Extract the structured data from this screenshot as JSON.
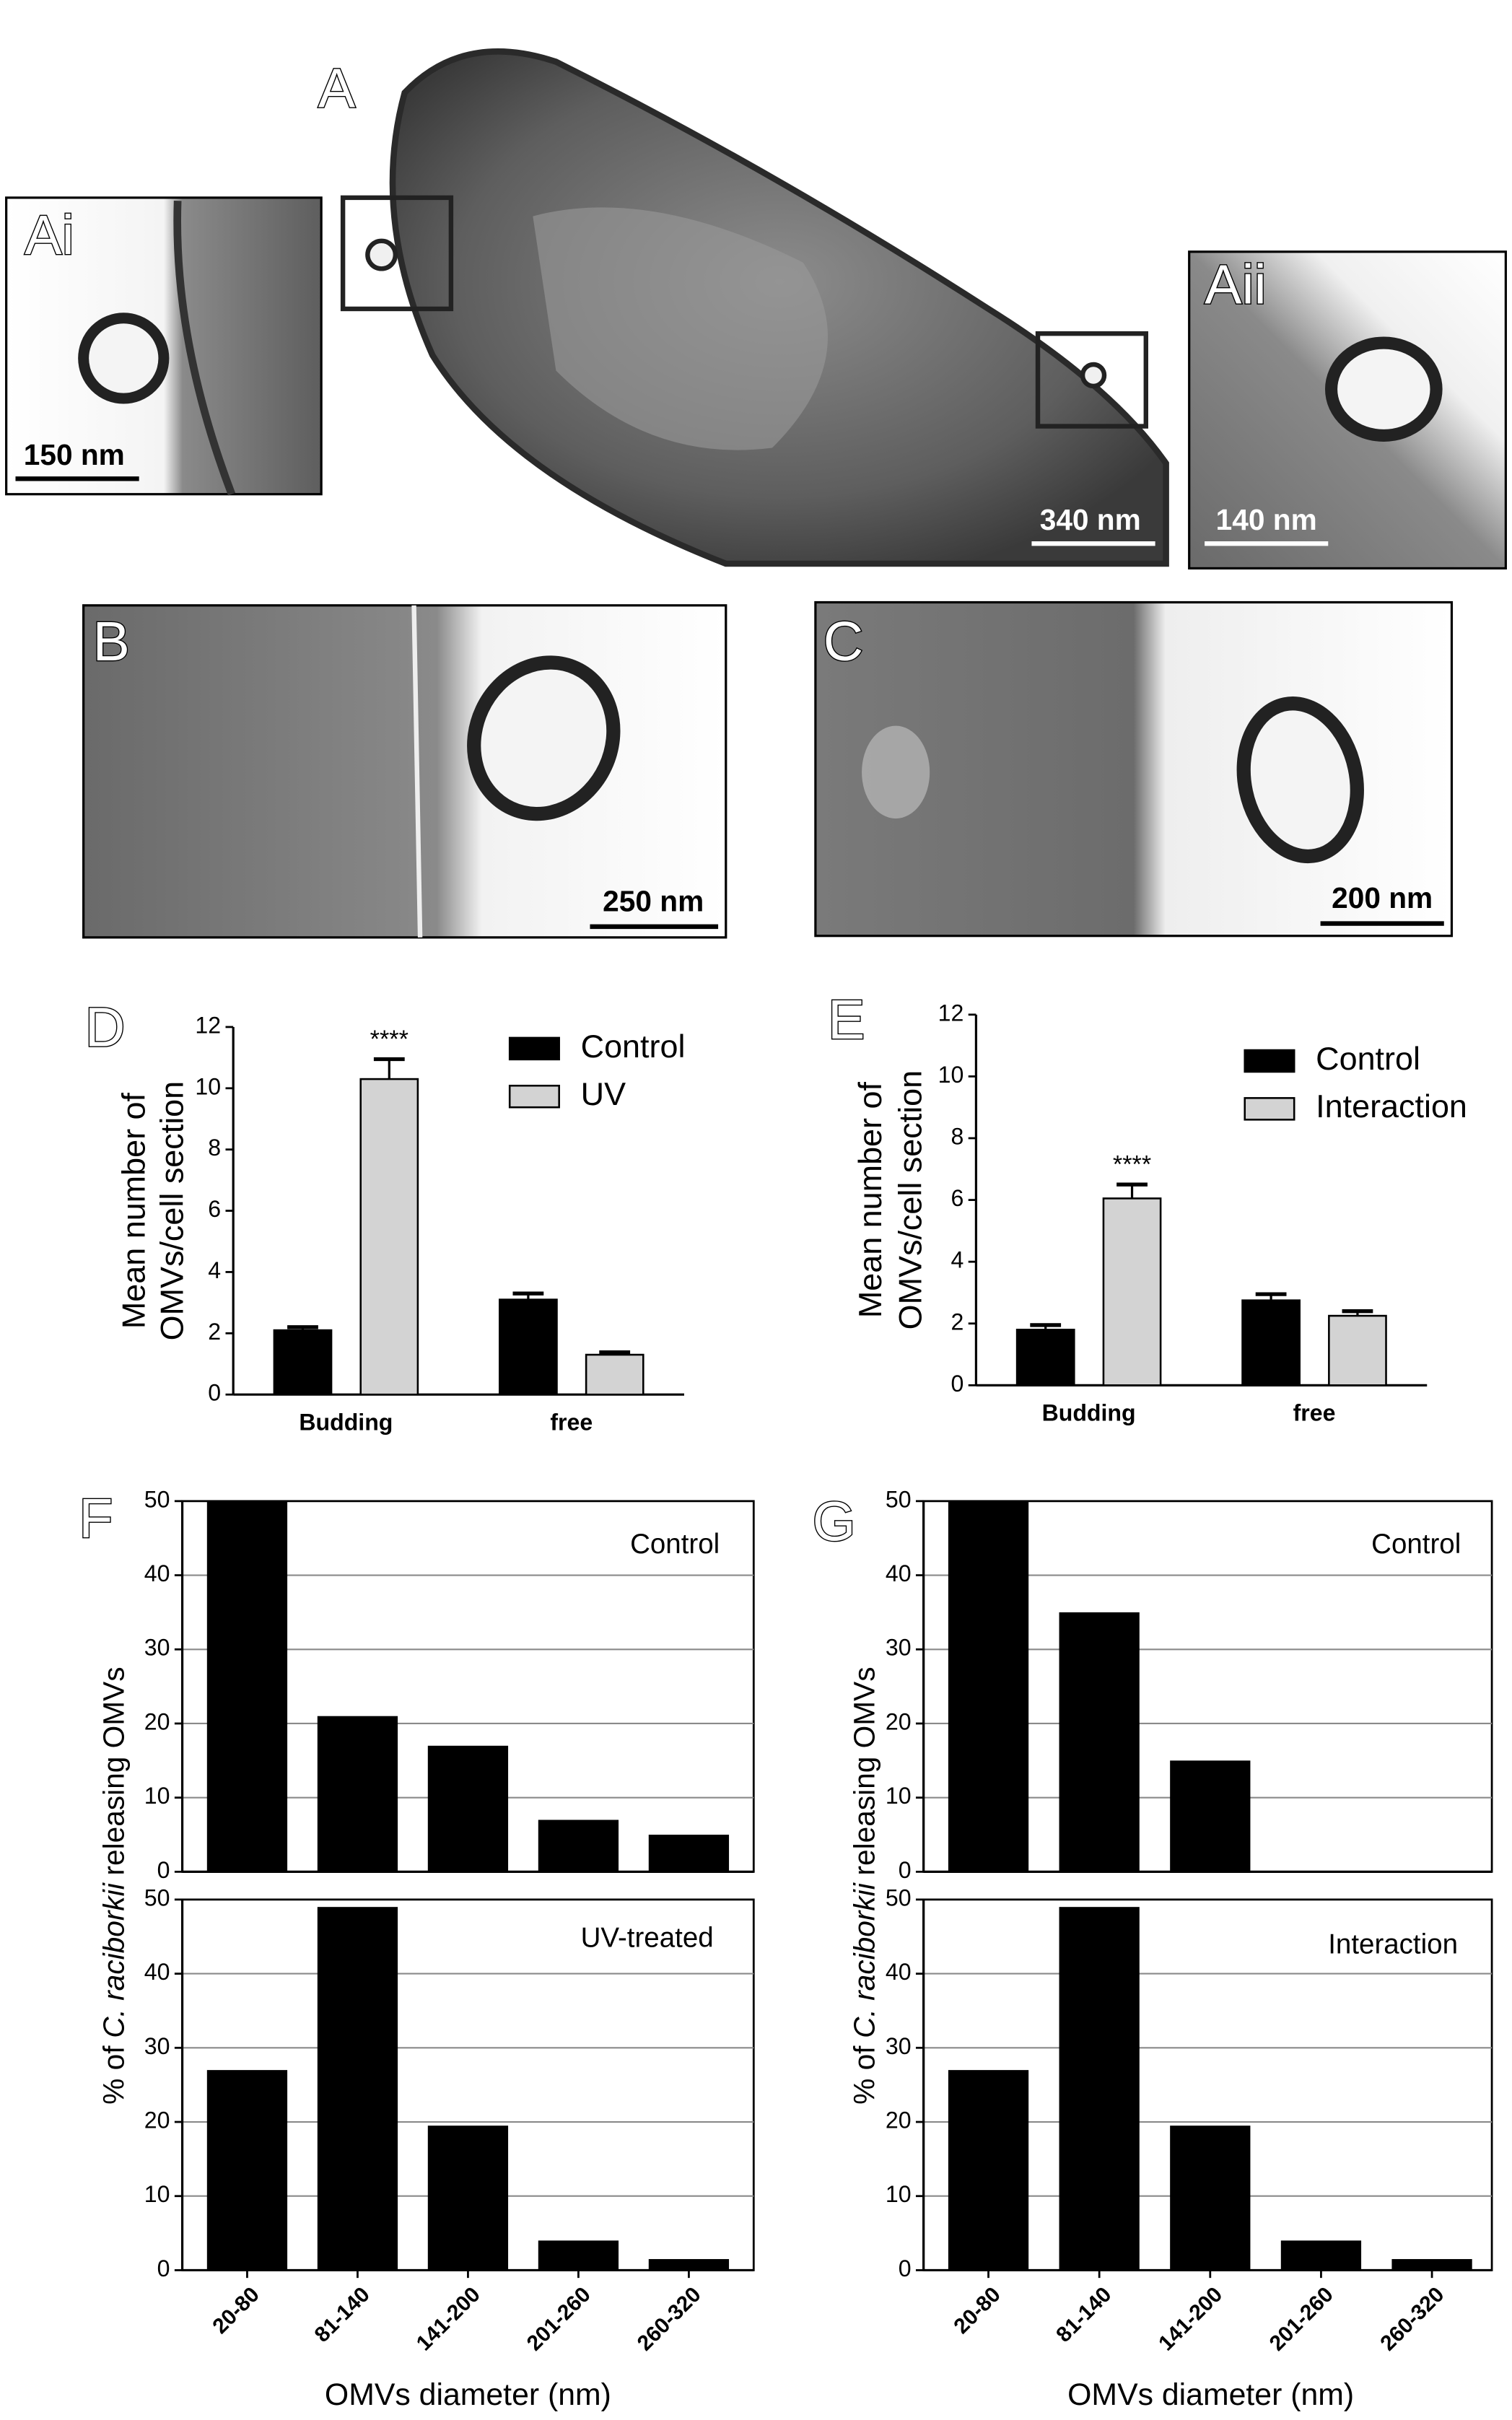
{
  "micrographs": [
    {
      "panel": "A",
      "scale_bar": "340 nm"
    },
    {
      "panel": "Ai",
      "scale_bar": "150 nm"
    },
    {
      "panel": "Aii",
      "scale_bar": "140 nm"
    },
    {
      "panel": "B",
      "scale_bar": "250 nm"
    },
    {
      "panel": "C",
      "scale_bar": "200 nm"
    }
  ],
  "chart_data": [
    {
      "type": "bar",
      "panel": "D",
      "y_label": [
        "Mean number of",
        "OMVs/cell section"
      ],
      "categories": [
        "Budding",
        "free"
      ],
      "series": [
        {
          "name": "Control",
          "color": "#000000",
          "values": [
            2.1,
            3.1
          ],
          "errors": [
            0.1,
            0.2
          ],
          "markers": [
            null,
            null
          ]
        },
        {
          "name": "UV",
          "color": "#d3d3d3",
          "values": [
            10.3,
            1.3
          ],
          "errors": [
            0.65,
            0.08
          ],
          "markers": [
            "****",
            null
          ]
        }
      ],
      "ylim": [
        0,
        12
      ],
      "yticks": [
        0,
        2,
        4,
        6,
        8,
        10,
        12
      ],
      "legend": "upper right"
    },
    {
      "type": "bar",
      "panel": "E",
      "y_label": [
        "Mean number of",
        "OMVs/cell section"
      ],
      "categories": [
        "Budding",
        "free"
      ],
      "series": [
        {
          "name": "Control",
          "color": "#000000",
          "values": [
            1.8,
            2.75
          ],
          "errors": [
            0.15,
            0.2
          ],
          "markers": [
            null,
            null
          ]
        },
        {
          "name": "Interaction",
          "color": "#d3d3d3",
          "values": [
            6.05,
            2.25
          ],
          "errors": [
            0.45,
            0.15
          ],
          "markers": [
            "****",
            null
          ]
        }
      ],
      "ylim": [
        0,
        12
      ],
      "yticks": [
        0,
        2,
        4,
        6,
        8,
        10,
        12
      ],
      "legend": "upper right"
    },
    {
      "type": "bar",
      "panel": "F",
      "y_label": [
        "% of",
        "C. raciborkii",
        "releasing OMVs"
      ],
      "subtitle": "Control",
      "color": "#000000",
      "values": [
        50,
        21,
        17,
        7,
        5
      ],
      "ylim": [
        0,
        50
      ],
      "yticks": [
        0,
        10,
        20,
        30,
        40,
        50
      ],
      "grid": true
    },
    {
      "type": "bar",
      "subtitle": "UV-treated",
      "categories": [
        "20-80",
        "81-140",
        "141-200",
        "201-260",
        "260-320"
      ],
      "x_label": "OMVs diameter (nm)",
      "color": "#000000",
      "values": [
        27,
        49,
        19.5,
        4,
        1.5
      ],
      "ylim": [
        0,
        50
      ],
      "yticks": [
        0,
        10,
        20,
        30,
        40,
        50
      ],
      "grid": true
    },
    {
      "type": "bar",
      "panel": "G",
      "y_label": [
        "% of",
        "C. raciborkii",
        "releasing OMVs"
      ],
      "subtitle": "Control",
      "color": "#000000",
      "values": [
        50,
        35,
        15,
        0,
        0
      ],
      "ylim": [
        0,
        50
      ],
      "yticks": [
        0,
        10,
        20,
        30,
        40,
        50
      ],
      "grid": true
    },
    {
      "type": "bar",
      "subtitle": "Interaction",
      "categories": [
        "20-80",
        "81-140",
        "141-200",
        "201-260",
        "260-320"
      ],
      "x_label": "OMVs diameter (nm)",
      "color": "#000000",
      "values": [
        27,
        49,
        19.5,
        4,
        1.5
      ],
      "ylim": [
        0,
        50
      ],
      "yticks": [
        0,
        10,
        20,
        30,
        40,
        50
      ],
      "grid": true
    }
  ]
}
